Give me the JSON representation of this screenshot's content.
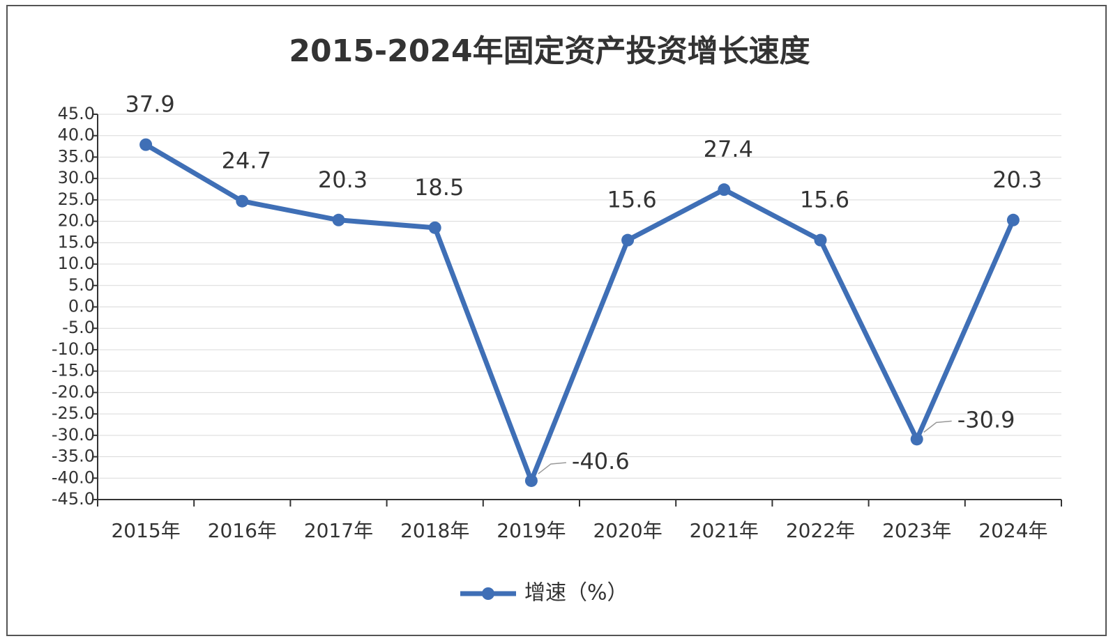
{
  "chart_data": {
    "type": "line",
    "title": "2015-2024年固定资产投资增长速度",
    "categories": [
      "2015年",
      "2016年",
      "2017年",
      "2018年",
      "2019年",
      "2020年",
      "2021年",
      "2022年",
      "2023年",
      "2024年"
    ],
    "series": [
      {
        "name": "增速（%）",
        "color": "#3f6fb6",
        "values": [
          37.9,
          24.7,
          20.3,
          18.5,
          -40.6,
          15.6,
          27.4,
          15.6,
          -30.9,
          20.3
        ]
      }
    ],
    "ylim": [
      -45,
      45
    ],
    "yticks": [
      {
        "value": -45,
        "label": "-45.0"
      },
      {
        "value": -40,
        "label": "-40.0"
      },
      {
        "value": -35,
        "label": "-35.0"
      },
      {
        "value": -30,
        "label": "-30.0"
      },
      {
        "value": -25,
        "label": "-25.0"
      },
      {
        "value": -20,
        "label": "-20.0"
      },
      {
        "value": -15,
        "label": "-15.0"
      },
      {
        "value": -10,
        "label": "-10.0"
      },
      {
        "value": -5,
        "label": "-5.0"
      },
      {
        "value": 0,
        "label": "0.0"
      },
      {
        "value": 5,
        "label": "5.0"
      },
      {
        "value": 10,
        "label": "10.0"
      },
      {
        "value": 15,
        "label": "15.0"
      },
      {
        "value": 20,
        "label": "20.0"
      },
      {
        "value": 25,
        "label": "25.0"
      },
      {
        "value": 30,
        "label": "30.0"
      },
      {
        "value": 35,
        "label": "35.0"
      },
      {
        "value": 40,
        "label": "40.0"
      },
      {
        "value": 45,
        "label": "45.0"
      }
    ],
    "grid": true,
    "legend": "bottom"
  }
}
